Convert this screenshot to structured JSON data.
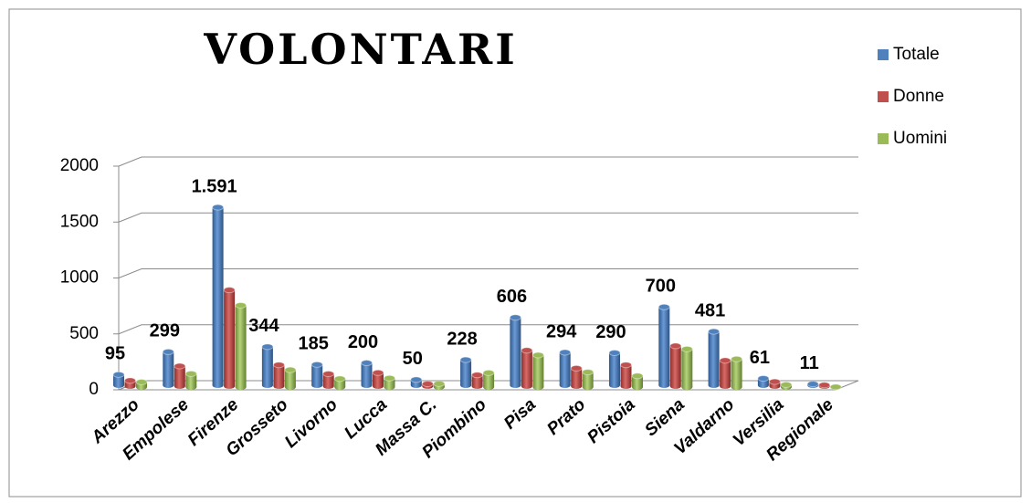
{
  "chart_data": {
    "type": "bar",
    "title": "VOLONTARI",
    "categories": [
      "Arezzo",
      "Empolese",
      "Firenze",
      "Grosseto",
      "Livorno",
      "Lucca",
      "Massa C.",
      "Piombino",
      "Pisa",
      "Prato",
      "Pistoia",
      "Siena",
      "Valdarno",
      "Versilia",
      "Regionale"
    ],
    "series": [
      {
        "name": "Totale",
        "color": "#4f81bd",
        "values": [
          95,
          299,
          1591,
          344,
          185,
          200,
          50,
          228,
          606,
          294,
          290,
          700,
          481,
          61,
          11
        ],
        "value_labels": [
          "95",
          "299",
          "1.591",
          "344",
          "185",
          "200",
          "50",
          "228",
          "606",
          "294",
          "290",
          "700",
          "481",
          "61",
          "11"
        ]
      },
      {
        "name": "Donne",
        "color": "#c0504d",
        "values": [
          50,
          180,
          860,
          190,
          110,
          120,
          20,
          100,
          320,
          160,
          190,
          360,
          230,
          40,
          10
        ]
      },
      {
        "name": "Uomini",
        "color": "#9bbb59",
        "values": [
          45,
          119,
          731,
          154,
          75,
          80,
          30,
          128,
          286,
          134,
          100,
          340,
          251,
          21,
          1
        ]
      }
    ],
    "ylim": [
      0,
      2000
    ],
    "yticks": [
      0,
      500,
      1000,
      1500,
      2000
    ],
    "grid": true,
    "legend": "right"
  }
}
